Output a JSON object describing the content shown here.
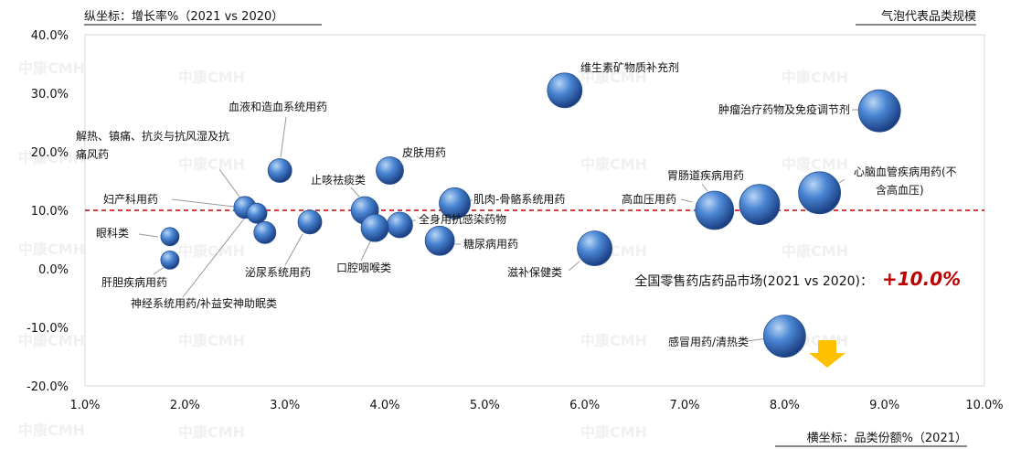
{
  "chart_data": {
    "type": "scatter",
    "y_axis_title": "纵坐标：增长率%（2021 vs 2020）",
    "x_axis_title": "横坐标：品类份额%（2021）",
    "size_note": "气泡代表品类规模",
    "x_ticks": [
      "1.0%",
      "2.0%",
      "3.0%",
      "4.0%",
      "5.0%",
      "6.0%",
      "7.0%",
      "8.0%",
      "9.0%",
      "10.0%"
    ],
    "y_ticks": [
      "40.0%",
      "30.0%",
      "20.0%",
      "10.0%",
      "0.0%",
      "-10.0%",
      "-20.0%"
    ],
    "xlim": [
      1.0,
      10.0
    ],
    "ylim": [
      -20.0,
      40.0
    ],
    "reference_line": {
      "y": 10.0,
      "style": "dashed",
      "color": "#c00000"
    },
    "market_note": "全国零售药店药品市场(2021 vs 2020)：",
    "market_growth": "+10.0%",
    "watermark": "中康CMH",
    "colors": {
      "bubble_light": "#9cc3ee",
      "bubble_mid": "#3f7fd0",
      "bubble_dark": "#1c3f82",
      "accent": "#c00000",
      "arrow": "#ffc000"
    },
    "points": [
      {
        "name": "维生素矿物质补充剂",
        "x": 5.8,
        "y": 30.5,
        "r": 19
      },
      {
        "name": "肿瘤治疗药物及免疫调节剂",
        "x": 8.95,
        "y": 27.0,
        "r": 23
      },
      {
        "name": "血液和造血系统用药",
        "x": 2.95,
        "y": 16.8,
        "r": 13
      },
      {
        "name": "解热、镇痛、抗炎与抗风湿及抗痛风药",
        "x": 2.6,
        "y": 10.5,
        "r": 12
      },
      {
        "name": "",
        "x": 2.72,
        "y": 9.5,
        "r": 11
      },
      {
        "name": "皮肤用药",
        "x": 4.05,
        "y": 16.8,
        "r": 15
      },
      {
        "name": "止咳祛痰类",
        "x": 3.8,
        "y": 10.0,
        "r": 15
      },
      {
        "name": "全身用抗感染药物",
        "x": 4.15,
        "y": 7.5,
        "r": 14
      },
      {
        "name": "口腔咽喉类",
        "x": 3.9,
        "y": 7.0,
        "r": 15
      },
      {
        "name": "肌肉-骨骼系统用药",
        "x": 4.7,
        "y": 11.2,
        "r": 17
      },
      {
        "name": "糖尿病用药",
        "x": 4.55,
        "y": 4.8,
        "r": 16
      },
      {
        "name": "妇产科用药",
        "x": 2.6,
        "y": 10.5,
        "r": 0
      },
      {
        "name": "眼科类",
        "x": 1.85,
        "y": 5.5,
        "r": 10
      },
      {
        "name": "肝胆疾病用药",
        "x": 1.85,
        "y": 1.5,
        "r": 10
      },
      {
        "name": "泌尿系统用药",
        "x": 3.25,
        "y": 8.0,
        "r": 13
      },
      {
        "name": "神经系统用药/补益安神助眠类",
        "x": 2.8,
        "y": 6.2,
        "r": 12
      },
      {
        "name": "滋补保健类",
        "x": 6.1,
        "y": 3.5,
        "r": 19
      },
      {
        "name": "胃肠道疾病用药",
        "x": 7.3,
        "y": 10.0,
        "r": 21
      },
      {
        "name": "高血压用药",
        "x": 7.75,
        "y": 11.0,
        "r": 22
      },
      {
        "name": "心脑血管疾病用药(不含高血压)",
        "x": 8.35,
        "y": 13.0,
        "r": 23
      },
      {
        "name": "感冒用药/清热类",
        "x": 8.0,
        "y": -11.5,
        "r": 23
      }
    ]
  }
}
